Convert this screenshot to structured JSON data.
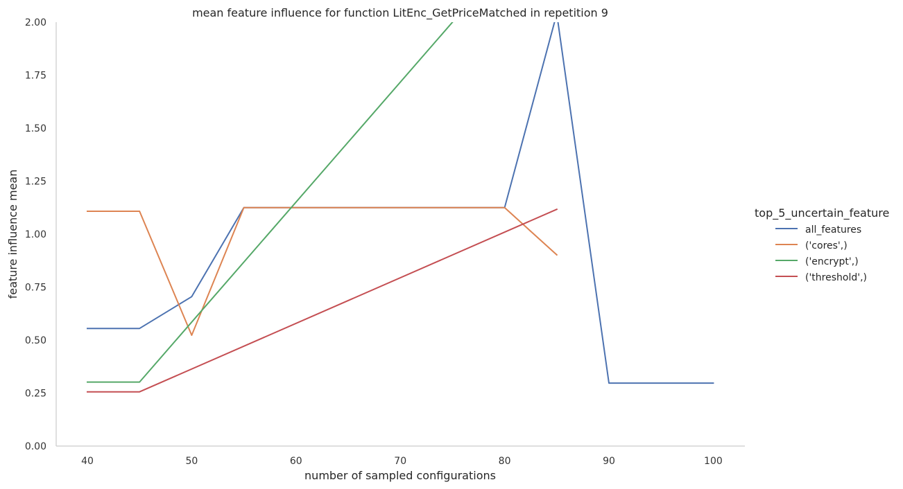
{
  "chart_data": {
    "type": "line",
    "title": "mean feature influence for function LitEnc_GetPriceMatched in repetition 9",
    "xlabel": "number of sampled configurations",
    "ylabel": "feature influence mean",
    "xlim": [
      37,
      103
    ],
    "ylim": [
      0,
      2.0
    ],
    "x_ticks": [
      40,
      50,
      60,
      70,
      80,
      90,
      100
    ],
    "y_ticks": [
      0.0,
      0.25,
      0.5,
      0.75,
      1.0,
      1.25,
      1.5,
      1.75,
      2.0
    ],
    "x_tick_labels": [
      "40",
      "50",
      "60",
      "70",
      "80",
      "90",
      "100"
    ],
    "y_tick_labels": [
      "0.00",
      "0.25",
      "0.50",
      "0.75",
      "1.00",
      "1.25",
      "1.50",
      "1.75",
      "2.00"
    ],
    "grid": false,
    "legend_placement": "right",
    "legend_title": "top_5_uncertain_feature",
    "series": [
      {
        "name": "all_features",
        "color": "#4c72b0",
        "points": [
          [
            40,
            0.555
          ],
          [
            45,
            0.555
          ],
          [
            50,
            0.705
          ],
          [
            55,
            1.125
          ],
          [
            80,
            1.125
          ],
          [
            85,
            2.04
          ],
          [
            90,
            0.297
          ],
          [
            100,
            0.297
          ]
        ]
      },
      {
        "name": "('cores',)",
        "color": "#dd8452",
        "points": [
          [
            40,
            1.108
          ],
          [
            45,
            1.108
          ],
          [
            50,
            0.523
          ],
          [
            55,
            1.125
          ],
          [
            80,
            1.125
          ],
          [
            85,
            0.902
          ]
        ]
      },
      {
        "name": "('encrypt',)",
        "color": "#55a868",
        "points": [
          [
            40,
            0.302
          ],
          [
            45,
            0.302
          ],
          [
            75,
            2.0
          ]
        ]
      },
      {
        "name": "('threshold',)",
        "color": "#c44e52",
        "points": [
          [
            40,
            0.256
          ],
          [
            45,
            0.256
          ],
          [
            85,
            1.117
          ]
        ]
      }
    ]
  }
}
